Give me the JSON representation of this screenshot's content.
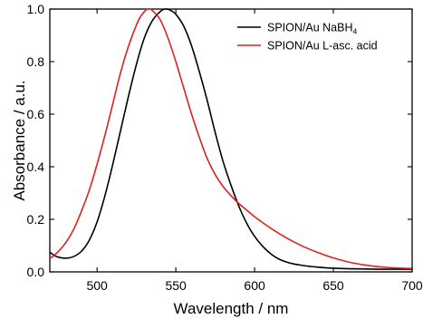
{
  "chart_data": {
    "type": "line",
    "xlabel": "Wavelength / nm",
    "ylabel": "Absorbance / a.u.",
    "xlim": [
      470,
      700
    ],
    "ylim": [
      0.0,
      1.0
    ],
    "x_ticks": [
      500,
      550,
      600,
      650,
      700
    ],
    "x_tick_labels": [
      "500",
      "550",
      "600",
      "650",
      "700"
    ],
    "y_ticks": [
      0.0,
      0.2,
      0.4,
      0.6,
      0.8,
      1.0
    ],
    "y_tick_labels": [
      "0.0",
      "0.2",
      "0.4",
      "0.6",
      "0.8",
      "1.0"
    ],
    "legend_position": "top-right",
    "grid": false,
    "series": [
      {
        "name": "SPION/Au NaBH",
        "name_subscript": "4",
        "color": "#000000",
        "x": [
          470,
          473,
          476,
          480,
          485,
          490,
          495,
          500,
          505,
          510,
          515,
          520,
          525,
          530,
          535,
          540,
          543,
          546,
          550,
          555,
          560,
          565,
          570,
          575,
          580,
          585,
          590,
          595,
          600,
          605,
          610,
          615,
          620,
          625,
          630,
          635,
          640,
          650,
          660,
          670,
          680,
          690,
          700
        ],
        "y": [
          0.075,
          0.062,
          0.055,
          0.052,
          0.058,
          0.078,
          0.12,
          0.19,
          0.29,
          0.41,
          0.54,
          0.67,
          0.79,
          0.89,
          0.955,
          0.99,
          1.0,
          0.997,
          0.98,
          0.935,
          0.86,
          0.76,
          0.65,
          0.53,
          0.42,
          0.33,
          0.25,
          0.185,
          0.135,
          0.098,
          0.07,
          0.05,
          0.038,
          0.03,
          0.025,
          0.021,
          0.018,
          0.014,
          0.012,
          0.011,
          0.01,
          0.01,
          0.01
        ]
      },
      {
        "name": "SPION/Au L-asc. acid",
        "color": "#e02020",
        "x": [
          470,
          475,
          480,
          485,
          490,
          495,
          500,
          505,
          510,
          515,
          520,
          525,
          528,
          532,
          535,
          540,
          545,
          550,
          555,
          560,
          565,
          570,
          575,
          580,
          585,
          590,
          595,
          600,
          605,
          610,
          615,
          620,
          625,
          630,
          635,
          640,
          645,
          650,
          660,
          670,
          680,
          690,
          700
        ],
        "y": [
          0.05,
          0.075,
          0.11,
          0.16,
          0.23,
          0.31,
          0.41,
          0.52,
          0.64,
          0.76,
          0.86,
          0.94,
          0.975,
          1.0,
          0.995,
          0.96,
          0.89,
          0.8,
          0.7,
          0.6,
          0.51,
          0.43,
          0.37,
          0.325,
          0.29,
          0.26,
          0.235,
          0.21,
          0.188,
          0.167,
          0.148,
          0.13,
          0.114,
          0.099,
          0.086,
          0.074,
          0.063,
          0.053,
          0.037,
          0.026,
          0.019,
          0.015,
          0.013
        ]
      }
    ]
  }
}
